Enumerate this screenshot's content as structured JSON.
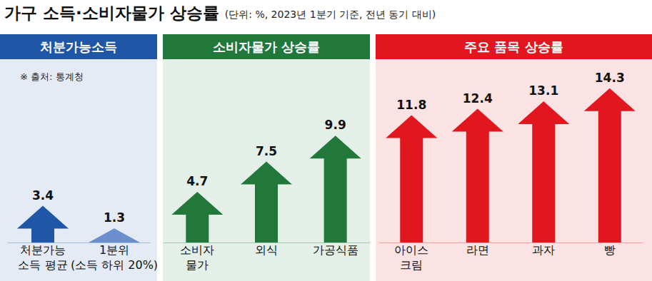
{
  "title": "가구 소득·소비자물가 상승률",
  "subtitle": "(단위: %, 2023년 1분기 기준, 전년 동기 대비)",
  "chart_data": [
    {
      "type": "bar",
      "title": "처분가능소득",
      "annotations": [
        "※ 출처: 통계청"
      ],
      "categories": [
        "처분가능\n소득 평균",
        "1분위\n(소득 하위 20%)"
      ],
      "values": [
        3.4,
        1.3
      ],
      "colors": [
        "#1f56a5",
        "#6b8fcc"
      ],
      "ylim": [
        0,
        17
      ],
      "data_labels": true,
      "tick_labels": "x"
    },
    {
      "type": "bar",
      "title": "소비자물가 상승률",
      "categories": [
        "소비자\n물가",
        "외식",
        "가공식품"
      ],
      "values": [
        4.7,
        7.5,
        9.9
      ],
      "color": "#22773a",
      "ylim": [
        0,
        17
      ],
      "data_labels": true,
      "tick_labels": "x"
    },
    {
      "type": "bar",
      "title": "주요 품목 상승률",
      "categories": [
        "아이스\n크림",
        "라면",
        "과자",
        "빵"
      ],
      "values": [
        11.8,
        12.4,
        13.1,
        14.3
      ],
      "color": "#e1161f",
      "ylim": [
        0,
        17
      ],
      "data_labels": true,
      "tick_labels": "x"
    }
  ]
}
